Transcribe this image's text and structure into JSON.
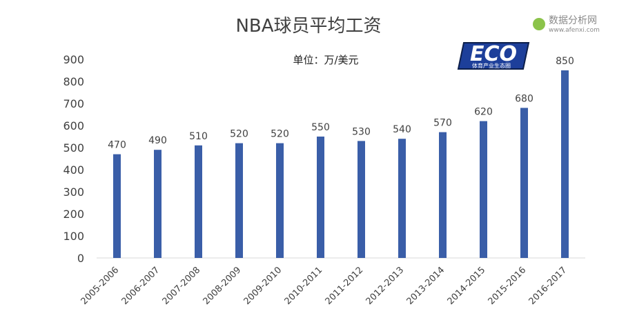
{
  "chart_data": {
    "type": "bar",
    "title": "NBA球员平均工资",
    "subtitle": "单位：万/美元",
    "categories": [
      "2005-2006",
      "2006-2007",
      "2007-2008",
      "2008-2009",
      "2009-2010",
      "2010-2011",
      "2011-2012",
      "2012-2013",
      "2013-2014",
      "2014-2015",
      "2015-2016",
      "2016-2017"
    ],
    "values": [
      470,
      490,
      510,
      520,
      520,
      550,
      530,
      540,
      570,
      620,
      680,
      850
    ],
    "ylim": [
      0,
      900
    ],
    "yticks": [
      0,
      100,
      200,
      300,
      400,
      500,
      600,
      700,
      800,
      900
    ],
    "xlabel": "",
    "ylabel": "",
    "grid": false,
    "bar_color": "#3A5EA8",
    "data_labels": true
  },
  "logo": {
    "text": "ECO",
    "subtext": "体育产业生态圈"
  },
  "watermark": {
    "name": "数据分析网",
    "url": "www.afenxi.com",
    "accent": "#8BC34A"
  }
}
